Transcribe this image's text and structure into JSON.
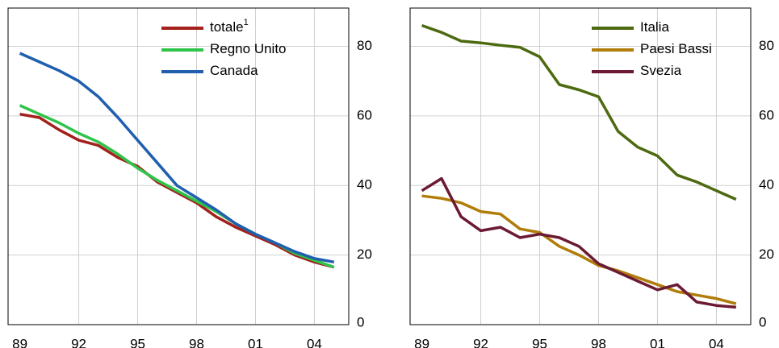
{
  "chart_data": [
    {
      "type": "line",
      "x": [
        1989,
        1990,
        1991,
        1992,
        1993,
        1994,
        1995,
        1996,
        1997,
        1998,
        1999,
        2000,
        2001,
        2002,
        2003,
        2004,
        2005
      ],
      "xlim": [
        1988.4,
        2005.75
      ],
      "xticks": [
        {
          "value": 1989,
          "label": "89"
        },
        {
          "value": 1992,
          "label": "92"
        },
        {
          "value": 1995,
          "label": "95"
        },
        {
          "value": 1998,
          "label": "98"
        },
        {
          "value": 2001,
          "label": "01"
        },
        {
          "value": 2004,
          "label": "04"
        }
      ],
      "ylim": [
        0,
        91
      ],
      "yticks": [
        0,
        20,
        40,
        60,
        80
      ],
      "grid": true,
      "series": [
        {
          "name": "totale",
          "note": "1",
          "color": "#a3201c",
          "values": [
            60.5,
            59.5,
            56,
            53,
            51.5,
            48,
            45.5,
            41,
            38,
            35,
            31,
            28,
            25.5,
            23,
            20,
            18,
            16.5
          ]
        },
        {
          "name": "Regno Unito",
          "color": "#2ec44a",
          "values": [
            63,
            60.5,
            58,
            55,
            52.5,
            49,
            45,
            41.5,
            38.5,
            35.5,
            32.5,
            29,
            26,
            23.5,
            20.5,
            18.5,
            16.5
          ]
        },
        {
          "name": "Canada",
          "color": "#1f5fae",
          "values": [
            78,
            75.5,
            73,
            70,
            65.5,
            59.5,
            53,
            46.5,
            40,
            36.5,
            33,
            29,
            26,
            23.5,
            21,
            19,
            18
          ]
        }
      ]
    },
    {
      "type": "line",
      "x": [
        1989,
        1990,
        1991,
        1992,
        1993,
        1994,
        1995,
        1996,
        1997,
        1998,
        1999,
        2000,
        2001,
        2002,
        2003,
        2004,
        2005
      ],
      "xlim": [
        1988.4,
        2005.75
      ],
      "xticks": [
        {
          "value": 1989,
          "label": "89"
        },
        {
          "value": 1992,
          "label": "92"
        },
        {
          "value": 1995,
          "label": "95"
        },
        {
          "value": 1998,
          "label": "98"
        },
        {
          "value": 2001,
          "label": "01"
        },
        {
          "value": 2004,
          "label": "04"
        }
      ],
      "ylim": [
        0,
        91
      ],
      "yticks": [
        0,
        20,
        40,
        60,
        80
      ],
      "grid": true,
      "series": [
        {
          "name": "Italia",
          "color": "#4d6a10",
          "values": [
            86,
            84,
            81.5,
            81,
            80.3,
            79.7,
            77,
            69,
            67.5,
            65.5,
            55.5,
            51,
            48.5,
            43,
            41,
            38.5,
            36
          ]
        },
        {
          "name": "Paesi Bassi",
          "color": "#b07d0a",
          "values": [
            37,
            36.3,
            35,
            32.5,
            31.8,
            27.5,
            26.5,
            22.5,
            20,
            17,
            15.5,
            13.5,
            11.5,
            9.5,
            8.5,
            7.5,
            6
          ]
        },
        {
          "name": "Svezia",
          "color": "#6b1a33",
          "values": [
            38.5,
            42,
            31,
            27,
            28,
            25,
            26,
            25,
            22.5,
            17.5,
            15,
            12.5,
            10,
            11.5,
            6.5,
            5.5,
            5
          ]
        }
      ]
    }
  ]
}
